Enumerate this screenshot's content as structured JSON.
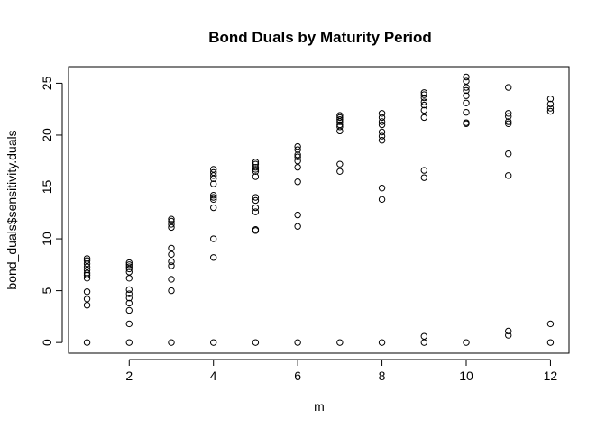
{
  "chart_data": {
    "type": "scatter",
    "title": "Bond Duals by Maturity Period",
    "xlabel": "m",
    "ylabel": "bond_duals$sensitivity.duals",
    "xlim": [
      0.56,
      12.44
    ],
    "ylim": [
      -1.03,
      26.6
    ],
    "x_ticks": [
      2,
      4,
      6,
      8,
      10,
      12
    ],
    "y_ticks": [
      0,
      5,
      10,
      15,
      20,
      25
    ],
    "grid": false,
    "legend": "none",
    "point_shape": "open-circle",
    "series": [
      {
        "points": [
          [
            1,
            0
          ],
          [
            1,
            3.6
          ],
          [
            1,
            4.2
          ],
          [
            1,
            4.9
          ],
          [
            1,
            6.2
          ],
          [
            1,
            6.5
          ],
          [
            1,
            6.7
          ],
          [
            1,
            7.0
          ],
          [
            1,
            7.3
          ],
          [
            1,
            7.6
          ],
          [
            1,
            7.9
          ],
          [
            1,
            8.1
          ],
          [
            2,
            0
          ],
          [
            2,
            1.8
          ],
          [
            2,
            3.1
          ],
          [
            2,
            3.8
          ],
          [
            2,
            4.3
          ],
          [
            2,
            4.7
          ],
          [
            2,
            5.1
          ],
          [
            2,
            6.2
          ],
          [
            2,
            6.8
          ],
          [
            2,
            7.1
          ],
          [
            2,
            7.3
          ],
          [
            2,
            7.5
          ],
          [
            2,
            7.7
          ],
          [
            3,
            0
          ],
          [
            3,
            5.0
          ],
          [
            3,
            6.1
          ],
          [
            3,
            7.4
          ],
          [
            3,
            7.8
          ],
          [
            3,
            8.5
          ],
          [
            3,
            9.1
          ],
          [
            3,
            11.1
          ],
          [
            3,
            11.4
          ],
          [
            3,
            11.7
          ],
          [
            3,
            11.9
          ],
          [
            4,
            0
          ],
          [
            4,
            8.2
          ],
          [
            4,
            10.0
          ],
          [
            4,
            13.0
          ],
          [
            4,
            13.8
          ],
          [
            4,
            14.0
          ],
          [
            4,
            14.2
          ],
          [
            4,
            15.3
          ],
          [
            4,
            15.8
          ],
          [
            4,
            16.1
          ],
          [
            4,
            16.4
          ],
          [
            4,
            16.7
          ],
          [
            5,
            0
          ],
          [
            5,
            10.8
          ],
          [
            5,
            10.9
          ],
          [
            5,
            12.6
          ],
          [
            5,
            13.0
          ],
          [
            5,
            13.7
          ],
          [
            5,
            14.0
          ],
          [
            5,
            16.0
          ],
          [
            5,
            16.5
          ],
          [
            5,
            16.7
          ],
          [
            5,
            16.9
          ],
          [
            5,
            17.2
          ],
          [
            5,
            17.4
          ],
          [
            6,
            0
          ],
          [
            6,
            11.2
          ],
          [
            6,
            12.3
          ],
          [
            6,
            15.5
          ],
          [
            6,
            16.9
          ],
          [
            6,
            17.5
          ],
          [
            6,
            17.9
          ],
          [
            6,
            18.1
          ],
          [
            6,
            18.6
          ],
          [
            6,
            18.9
          ],
          [
            7,
            0
          ],
          [
            7,
            16.5
          ],
          [
            7,
            17.2
          ],
          [
            7,
            20.4
          ],
          [
            7,
            20.8
          ],
          [
            7,
            21.0
          ],
          [
            7,
            21.3
          ],
          [
            7,
            21.5
          ],
          [
            7,
            21.7
          ],
          [
            7,
            21.9
          ],
          [
            8,
            0
          ],
          [
            8,
            13.8
          ],
          [
            8,
            14.9
          ],
          [
            8,
            19.5
          ],
          [
            8,
            19.9
          ],
          [
            8,
            20.3
          ],
          [
            8,
            21.0
          ],
          [
            8,
            21.3
          ],
          [
            8,
            21.7
          ],
          [
            8,
            22.1
          ],
          [
            9,
            0
          ],
          [
            9,
            0.6
          ],
          [
            9,
            15.9
          ],
          [
            9,
            16.6
          ],
          [
            9,
            21.7
          ],
          [
            9,
            22.4
          ],
          [
            9,
            22.9
          ],
          [
            9,
            23.2
          ],
          [
            9,
            23.6
          ],
          [
            9,
            23.9
          ],
          [
            9,
            24.1
          ],
          [
            10,
            0
          ],
          [
            10,
            21.1
          ],
          [
            10,
            21.2
          ],
          [
            10,
            22.2
          ],
          [
            10,
            23.1
          ],
          [
            10,
            23.8
          ],
          [
            10,
            24.3
          ],
          [
            10,
            24.6
          ],
          [
            10,
            25.2
          ],
          [
            10,
            25.6
          ],
          [
            11,
            0.7
          ],
          [
            11,
            1.1
          ],
          [
            11,
            16.1
          ],
          [
            11,
            18.2
          ],
          [
            11,
            21.1
          ],
          [
            11,
            21.3
          ],
          [
            11,
            21.8
          ],
          [
            11,
            22.1
          ],
          [
            11,
            24.6
          ],
          [
            12,
            0
          ],
          [
            12,
            1.8
          ],
          [
            12,
            22.3
          ],
          [
            12,
            22.6
          ],
          [
            12,
            23.0
          ],
          [
            12,
            23.5
          ]
        ]
      }
    ]
  }
}
